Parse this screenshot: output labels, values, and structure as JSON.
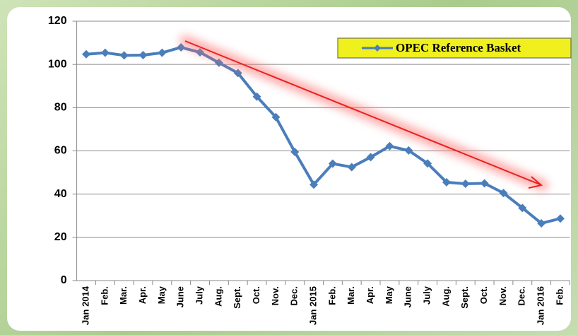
{
  "chart_data": {
    "type": "line",
    "categories": [
      "Jan 2014",
      "Feb.",
      "Mar.",
      "Apr.",
      "May",
      "June",
      "July",
      "Aug.",
      "Sept.",
      "Oct.",
      "Nov.",
      "Dec.",
      "Jan 2015",
      "Feb.",
      "Mar.",
      "Apr.",
      "May",
      "June",
      "July",
      "Aug.",
      "Sept.",
      "Oct.",
      "Nov.",
      "Dec.",
      "Jan 2016",
      "Feb."
    ],
    "series": [
      {
        "name": "OPEC Reference Basket",
        "color": "#4a7ebb",
        "values": [
          104.7,
          105.4,
          104.2,
          104.3,
          105.4,
          107.9,
          105.6,
          100.8,
          96.0,
          85.1,
          75.6,
          59.5,
          44.4,
          54.1,
          52.5,
          57.1,
          62.2,
          60.2,
          54.2,
          45.5,
          44.8,
          45.0,
          40.5,
          33.6,
          26.5,
          28.7
        ]
      }
    ],
    "ylim": [
      0,
      120
    ],
    "yticks": [
      0,
      20,
      40,
      60,
      80,
      100,
      120
    ],
    "grid": true,
    "legend": "top-right"
  }
}
